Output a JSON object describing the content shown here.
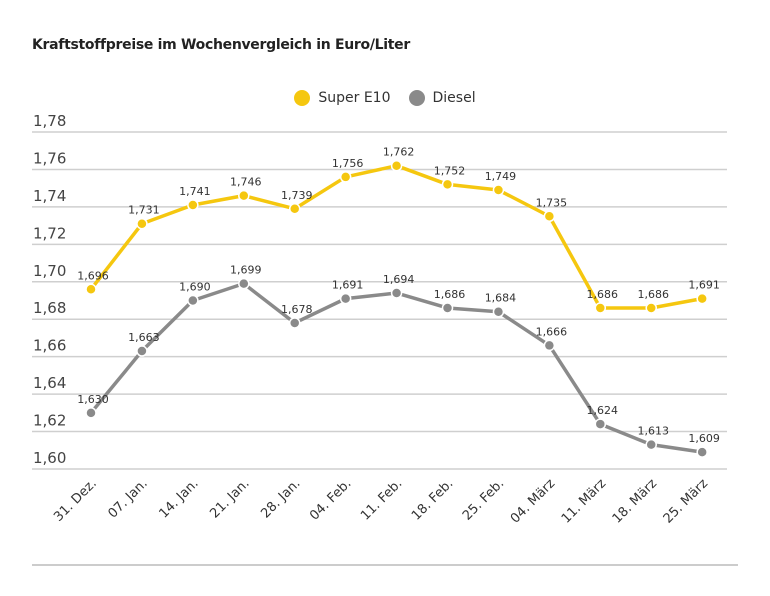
{
  "chart_data": {
    "type": "line",
    "title": "Kraftstoffpreise im Wochenvergleich in Euro/Liter",
    "categories": [
      "31. Dez.",
      "07. Jan.",
      "14. Jan.",
      "21. Jan.",
      "28. Jan.",
      "04. Feb.",
      "11. Feb.",
      "18. Feb.",
      "25. Feb.",
      "04. März",
      "11. März",
      "18. März",
      "25. März"
    ],
    "series": [
      {
        "name": "Super E10",
        "color": "#f5c70f",
        "values": [
          1.696,
          1.731,
          1.741,
          1.746,
          1.739,
          1.756,
          1.762,
          1.752,
          1.749,
          1.735,
          1.686,
          1.686,
          1.691
        ],
        "labels": [
          "1,696",
          "1,731",
          "1,741",
          "1,746",
          "1,739",
          "1,756",
          "1,762",
          "1,752",
          "1,749",
          "1,735",
          "1,686",
          "1,686",
          "1,691"
        ]
      },
      {
        "name": "Diesel",
        "color": "#8a8a8a",
        "values": [
          1.63,
          1.663,
          1.69,
          1.699,
          1.678,
          1.691,
          1.694,
          1.686,
          1.684,
          1.666,
          1.624,
          1.613,
          1.609
        ],
        "labels": [
          "1,630",
          "1,663",
          "1,690",
          "1,699",
          "1,678",
          "1,691",
          "1,694",
          "1,686",
          "1,684",
          "1,666",
          "1,624",
          "1,613",
          "1,609"
        ]
      }
    ],
    "yticks": [
      1.6,
      1.62,
      1.64,
      1.66,
      1.68,
      1.7,
      1.72,
      1.74,
      1.76,
      1.78
    ],
    "ytick_labels": [
      "1,60",
      "1,62",
      "1,64",
      "1,66",
      "1,68",
      "1,70",
      "1,72",
      "1,74",
      "1,76",
      "1,78"
    ],
    "ylim": [
      1.6,
      1.78
    ],
    "grid": true,
    "legend": "top-center"
  }
}
